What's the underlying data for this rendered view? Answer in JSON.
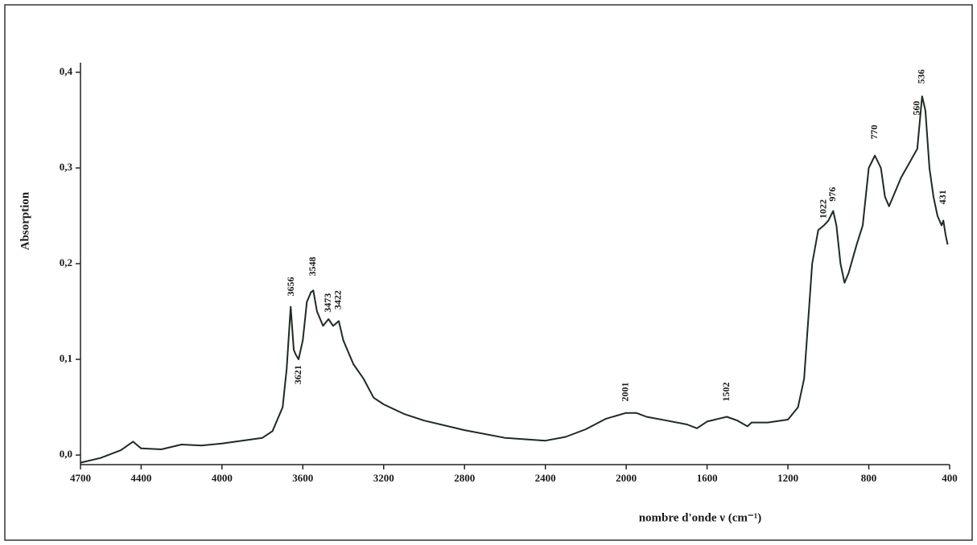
{
  "chart_data": {
    "type": "line",
    "xlabel": "nombre d'onde ν  (cm⁻¹)",
    "ylabel": "Absorption",
    "x": [
      4700,
      4600,
      4500,
      4440,
      4400,
      4300,
      4200,
      4100,
      4000,
      3900,
      3800,
      3750,
      3700,
      3680,
      3660,
      3645,
      3635,
      3621,
      3600,
      3580,
      3560,
      3548,
      3530,
      3500,
      3473,
      3450,
      3422,
      3400,
      3350,
      3300,
      3250,
      3200,
      3100,
      3000,
      2800,
      2600,
      2400,
      2300,
      2200,
      2100,
      2001,
      1950,
      1900,
      1800,
      1700,
      1650,
      1600,
      1502,
      1450,
      1400,
      1380,
      1300,
      1200,
      1150,
      1120,
      1100,
      1080,
      1050,
      1022,
      1000,
      976,
      960,
      940,
      920,
      900,
      860,
      830,
      800,
      770,
      740,
      720,
      700,
      680,
      640,
      600,
      560,
      536,
      520,
      500,
      480,
      460,
      440,
      431,
      420,
      410
    ],
    "values": [
      -0.008,
      -0.003,
      0.005,
      0.014,
      0.007,
      0.006,
      0.011,
      0.01,
      0.012,
      0.015,
      0.018,
      0.025,
      0.05,
      0.09,
      0.155,
      0.11,
      0.105,
      0.1,
      0.12,
      0.16,
      0.17,
      0.172,
      0.15,
      0.135,
      0.142,
      0.135,
      0.14,
      0.12,
      0.095,
      0.08,
      0.06,
      0.053,
      0.043,
      0.036,
      0.026,
      0.018,
      0.015,
      0.019,
      0.027,
      0.038,
      0.044,
      0.044,
      0.04,
      0.036,
      0.032,
      0.028,
      0.035,
      0.04,
      0.036,
      0.03,
      0.034,
      0.034,
      0.037,
      0.05,
      0.08,
      0.14,
      0.2,
      0.235,
      0.24,
      0.245,
      0.255,
      0.24,
      0.2,
      0.18,
      0.19,
      0.22,
      0.24,
      0.3,
      0.313,
      0.3,
      0.27,
      0.26,
      0.27,
      0.29,
      0.305,
      0.32,
      0.375,
      0.36,
      0.3,
      0.27,
      0.25,
      0.24,
      0.245,
      0.23,
      0.22
    ],
    "color": "#1e2a22",
    "xlim": [
      4700,
      400
    ],
    "ylim": [
      -0.01,
      0.41
    ],
    "xticks": [
      4700,
      4400,
      4000,
      3600,
      3200,
      2800,
      2400,
      2000,
      1600,
      1200,
      800,
      400
    ],
    "yticks": [
      {
        "value": 0,
        "label": "0,0"
      },
      {
        "value": 0.1,
        "label": "0,1"
      },
      {
        "value": 0.2,
        "label": "0,2"
      },
      {
        "value": 0.3,
        "label": "0,3"
      },
      {
        "value": 0.4,
        "label": "0,4"
      }
    ],
    "annotations": [
      {
        "text": "3656",
        "x": 3656,
        "y": 0.166,
        "side": "above"
      },
      {
        "text": "3621",
        "x": 3621,
        "y": 0.094,
        "side": "below"
      },
      {
        "text": "3548",
        "x": 3548,
        "y": 0.187,
        "side": "above"
      },
      {
        "text": "3473",
        "x": 3473,
        "y": 0.149,
        "side": "above"
      },
      {
        "text": "3422",
        "x": 3422,
        "y": 0.152,
        "side": "above"
      },
      {
        "text": "2001",
        "x": 2001,
        "y": 0.056,
        "side": "above"
      },
      {
        "text": "1502",
        "x": 1502,
        "y": 0.056,
        "side": "above"
      },
      {
        "text": "1022",
        "x": 1022,
        "y": 0.247,
        "side": "above"
      },
      {
        "text": "976",
        "x": 976,
        "y": 0.265,
        "side": "above"
      },
      {
        "text": "770",
        "x": 770,
        "y": 0.33,
        "side": "above"
      },
      {
        "text": "560",
        "x": 560,
        "y": 0.355,
        "side": "above"
      },
      {
        "text": "536",
        "x": 536,
        "y": 0.388,
        "side": "above"
      },
      {
        "text": "431",
        "x": 431,
        "y": 0.262,
        "side": "above"
      }
    ]
  }
}
